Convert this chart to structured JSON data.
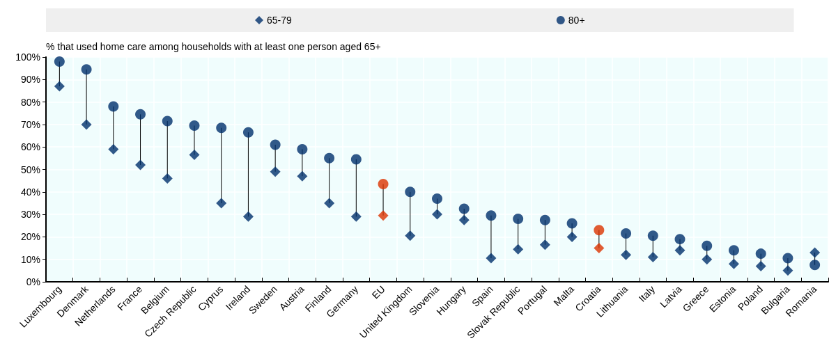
{
  "chart_data": {
    "type": "scatter",
    "ylabel": "% that used home care among households with at least one person aged 65+",
    "categories": [
      "Luxembourg",
      "Denmark",
      "Netherlands",
      "France",
      "Belgium",
      "Czech Republic",
      "Cyprus",
      "Ireland",
      "Sweden",
      "Austria",
      "Finland",
      "Germany",
      "EU",
      "United Kingdom",
      "Slovenia",
      "Hungary",
      "Spain",
      "Slovak Republic",
      "Portugal",
      "Malta",
      "Croatia",
      "Lithuania",
      "Italy",
      "Latvia",
      "Greece",
      "Estonia",
      "Poland",
      "Bulgaria",
      "Romania"
    ],
    "series": [
      {
        "name": "65-79",
        "color": "#002f6c",
        "marker": "diamond",
        "values": [
          87,
          70,
          59,
          52,
          46,
          56.5,
          35,
          29,
          49,
          47,
          35,
          29,
          29.5,
          20.5,
          30,
          27.5,
          10.5,
          14.5,
          16.5,
          20,
          15,
          12,
          11,
          14,
          10,
          8,
          7,
          5,
          13
        ],
        "colors": [
          "#002f6c",
          "#002f6c",
          "#002f6c",
          "#002f6c",
          "#002f6c",
          "#002f6c",
          "#002f6c",
          "#002f6c",
          "#002f6c",
          "#002f6c",
          "#002f6c",
          "#002f6c",
          "#dc3300",
          "#002f6c",
          "#002f6c",
          "#002f6c",
          "#002f6c",
          "#002f6c",
          "#002f6c",
          "#002f6c",
          "#dc3300",
          "#002f6c",
          "#002f6c",
          "#002f6c",
          "#002f6c",
          "#002f6c",
          "#002f6c",
          "#002f6c",
          "#002f6c"
        ]
      },
      {
        "name": "80+",
        "color": "#002f6c",
        "marker": "circle",
        "values": [
          98,
          94.5,
          78,
          74.5,
          71.5,
          69.5,
          68.5,
          66.5,
          61,
          59,
          55,
          54.5,
          43.5,
          40,
          37,
          32.5,
          29.5,
          28,
          27.5,
          26,
          23,
          21.5,
          20.5,
          19,
          16,
          14,
          12.5,
          10.5,
          7.5
        ],
        "colors": [
          "#002f6c",
          "#002f6c",
          "#002f6c",
          "#002f6c",
          "#002f6c",
          "#002f6c",
          "#002f6c",
          "#002f6c",
          "#002f6c",
          "#002f6c",
          "#002f6c",
          "#002f6c",
          "#dc3300",
          "#002f6c",
          "#002f6c",
          "#002f6c",
          "#002f6c",
          "#002f6c",
          "#002f6c",
          "#002f6c",
          "#dc3300",
          "#002f6c",
          "#002f6c",
          "#002f6c",
          "#002f6c",
          "#002f6c",
          "#002f6c",
          "#002f6c",
          "#002f6c"
        ]
      }
    ],
    "ylim": [
      0,
      100
    ],
    "yticks": [
      {
        "value": 0,
        "label": "0%"
      },
      {
        "value": 10,
        "label": "10%"
      },
      {
        "value": 20,
        "label": "20%"
      },
      {
        "value": 30,
        "label": "30%"
      },
      {
        "value": 40,
        "label": "40%"
      },
      {
        "value": 50,
        "label": "50%"
      },
      {
        "value": 60,
        "label": "60%"
      },
      {
        "value": 70,
        "label": "70%"
      },
      {
        "value": 80,
        "label": "80%"
      },
      {
        "value": 90,
        "label": "90%"
      },
      {
        "value": 100,
        "label": "100%"
      }
    ],
    "grid": true,
    "legend": "top"
  }
}
